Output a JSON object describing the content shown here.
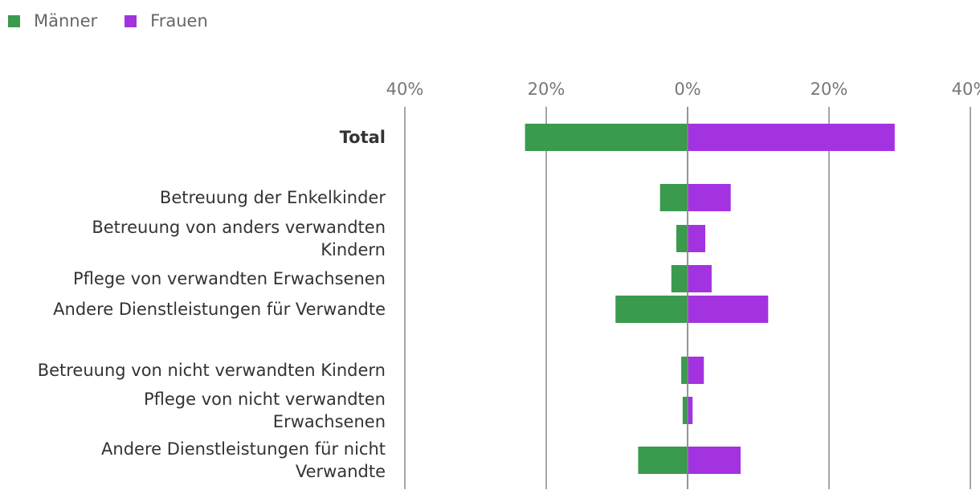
{
  "chart_data": {
    "type": "bar",
    "orientation": "horizontal-diverging",
    "legend": {
      "position": "top-left"
    },
    "series": [
      {
        "name": "Männer",
        "color": "#3a9a4e",
        "side": "left",
        "values": [
          23,
          3.9,
          1.6,
          2.3,
          10.2,
          0.9,
          0.7,
          7.0
        ]
      },
      {
        "name": "Frauen",
        "color": "#a333e0",
        "side": "right",
        "values": [
          29.3,
          6.1,
          2.5,
          3.4,
          11.4,
          2.3,
          0.7,
          7.5
        ]
      }
    ],
    "categories": [
      {
        "label": [
          "Total"
        ],
        "bold": true
      },
      {
        "label": [
          "Betreuung der Enkelkinder"
        ],
        "bold": false
      },
      {
        "label": [
          "Betreuung von anders verwandten",
          "Kindern"
        ],
        "bold": false
      },
      {
        "label": [
          "Pflege von verwandten Erwachsenen"
        ],
        "bold": false
      },
      {
        "label": [
          "Andere Dienstleistungen für Verwandte"
        ],
        "bold": false
      },
      {
        "label": [
          "Betreuung von nicht verwandten Kindern"
        ],
        "bold": false
      },
      {
        "label": [
          "Pflege von nicht verwandten",
          "Erwachsenen"
        ],
        "bold": false
      },
      {
        "label": [
          "Andere Dienstleistungen für nicht",
          "Verwandte"
        ],
        "bold": false
      }
    ],
    "axis": {
      "ticks": [
        -40,
        -20,
        0,
        20,
        40
      ],
      "tick_labels": [
        "40%",
        "20%",
        "0%",
        "20%",
        "40%"
      ],
      "range": [
        -40,
        40
      ],
      "gridlines": true
    }
  }
}
